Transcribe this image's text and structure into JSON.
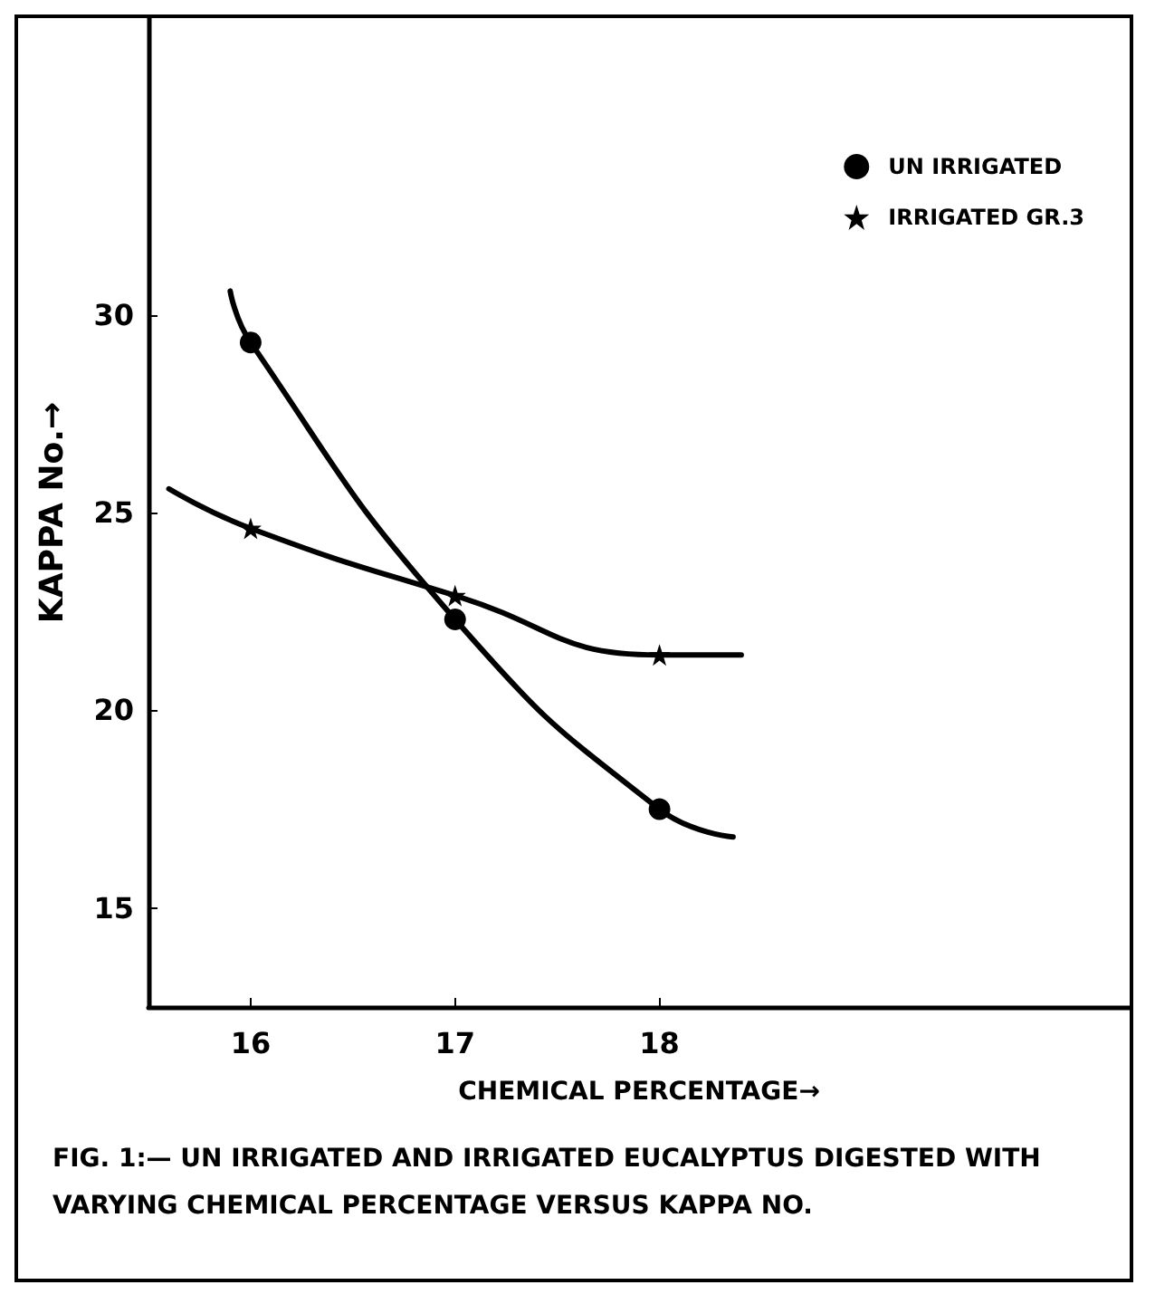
{
  "chart_data": {
    "type": "line",
    "title": "FIG. 1:— UN IRRIGATED AND IRRIGATED EUCALYPTUS DIGESTED WITH VARYING CHEMICAL PERCENTAGE VERSUS KAPPA NO.",
    "xlabel": "CHEMICAL PERCENTAGE→",
    "ylabel": "KAPPA No.→",
    "series": [
      {
        "name": "UN IRRIGATED",
        "color": "#000000",
        "marker": "circle",
        "x": [
          15.9,
          16,
          17,
          18,
          18.36
        ],
        "values": [
          30.6,
          29.3,
          22.3,
          17.5,
          16.8
        ]
      },
      {
        "name": "IRRIGATED GR.3",
        "color": "#000000",
        "marker": "star",
        "x": [
          15.6,
          16,
          17,
          18,
          18.4
        ],
        "values": [
          25.6,
          24.6,
          22.9,
          21.4,
          21.4
        ]
      }
    ],
    "xlim": [
      15.5,
      20.3
    ],
    "xticks": [
      16,
      17,
      18
    ],
    "ylim": [
      12.5,
      37.5
    ],
    "yticks": [
      15,
      20,
      25,
      30
    ],
    "grid": false,
    "legend": "top right",
    "line_style": "solid"
  }
}
